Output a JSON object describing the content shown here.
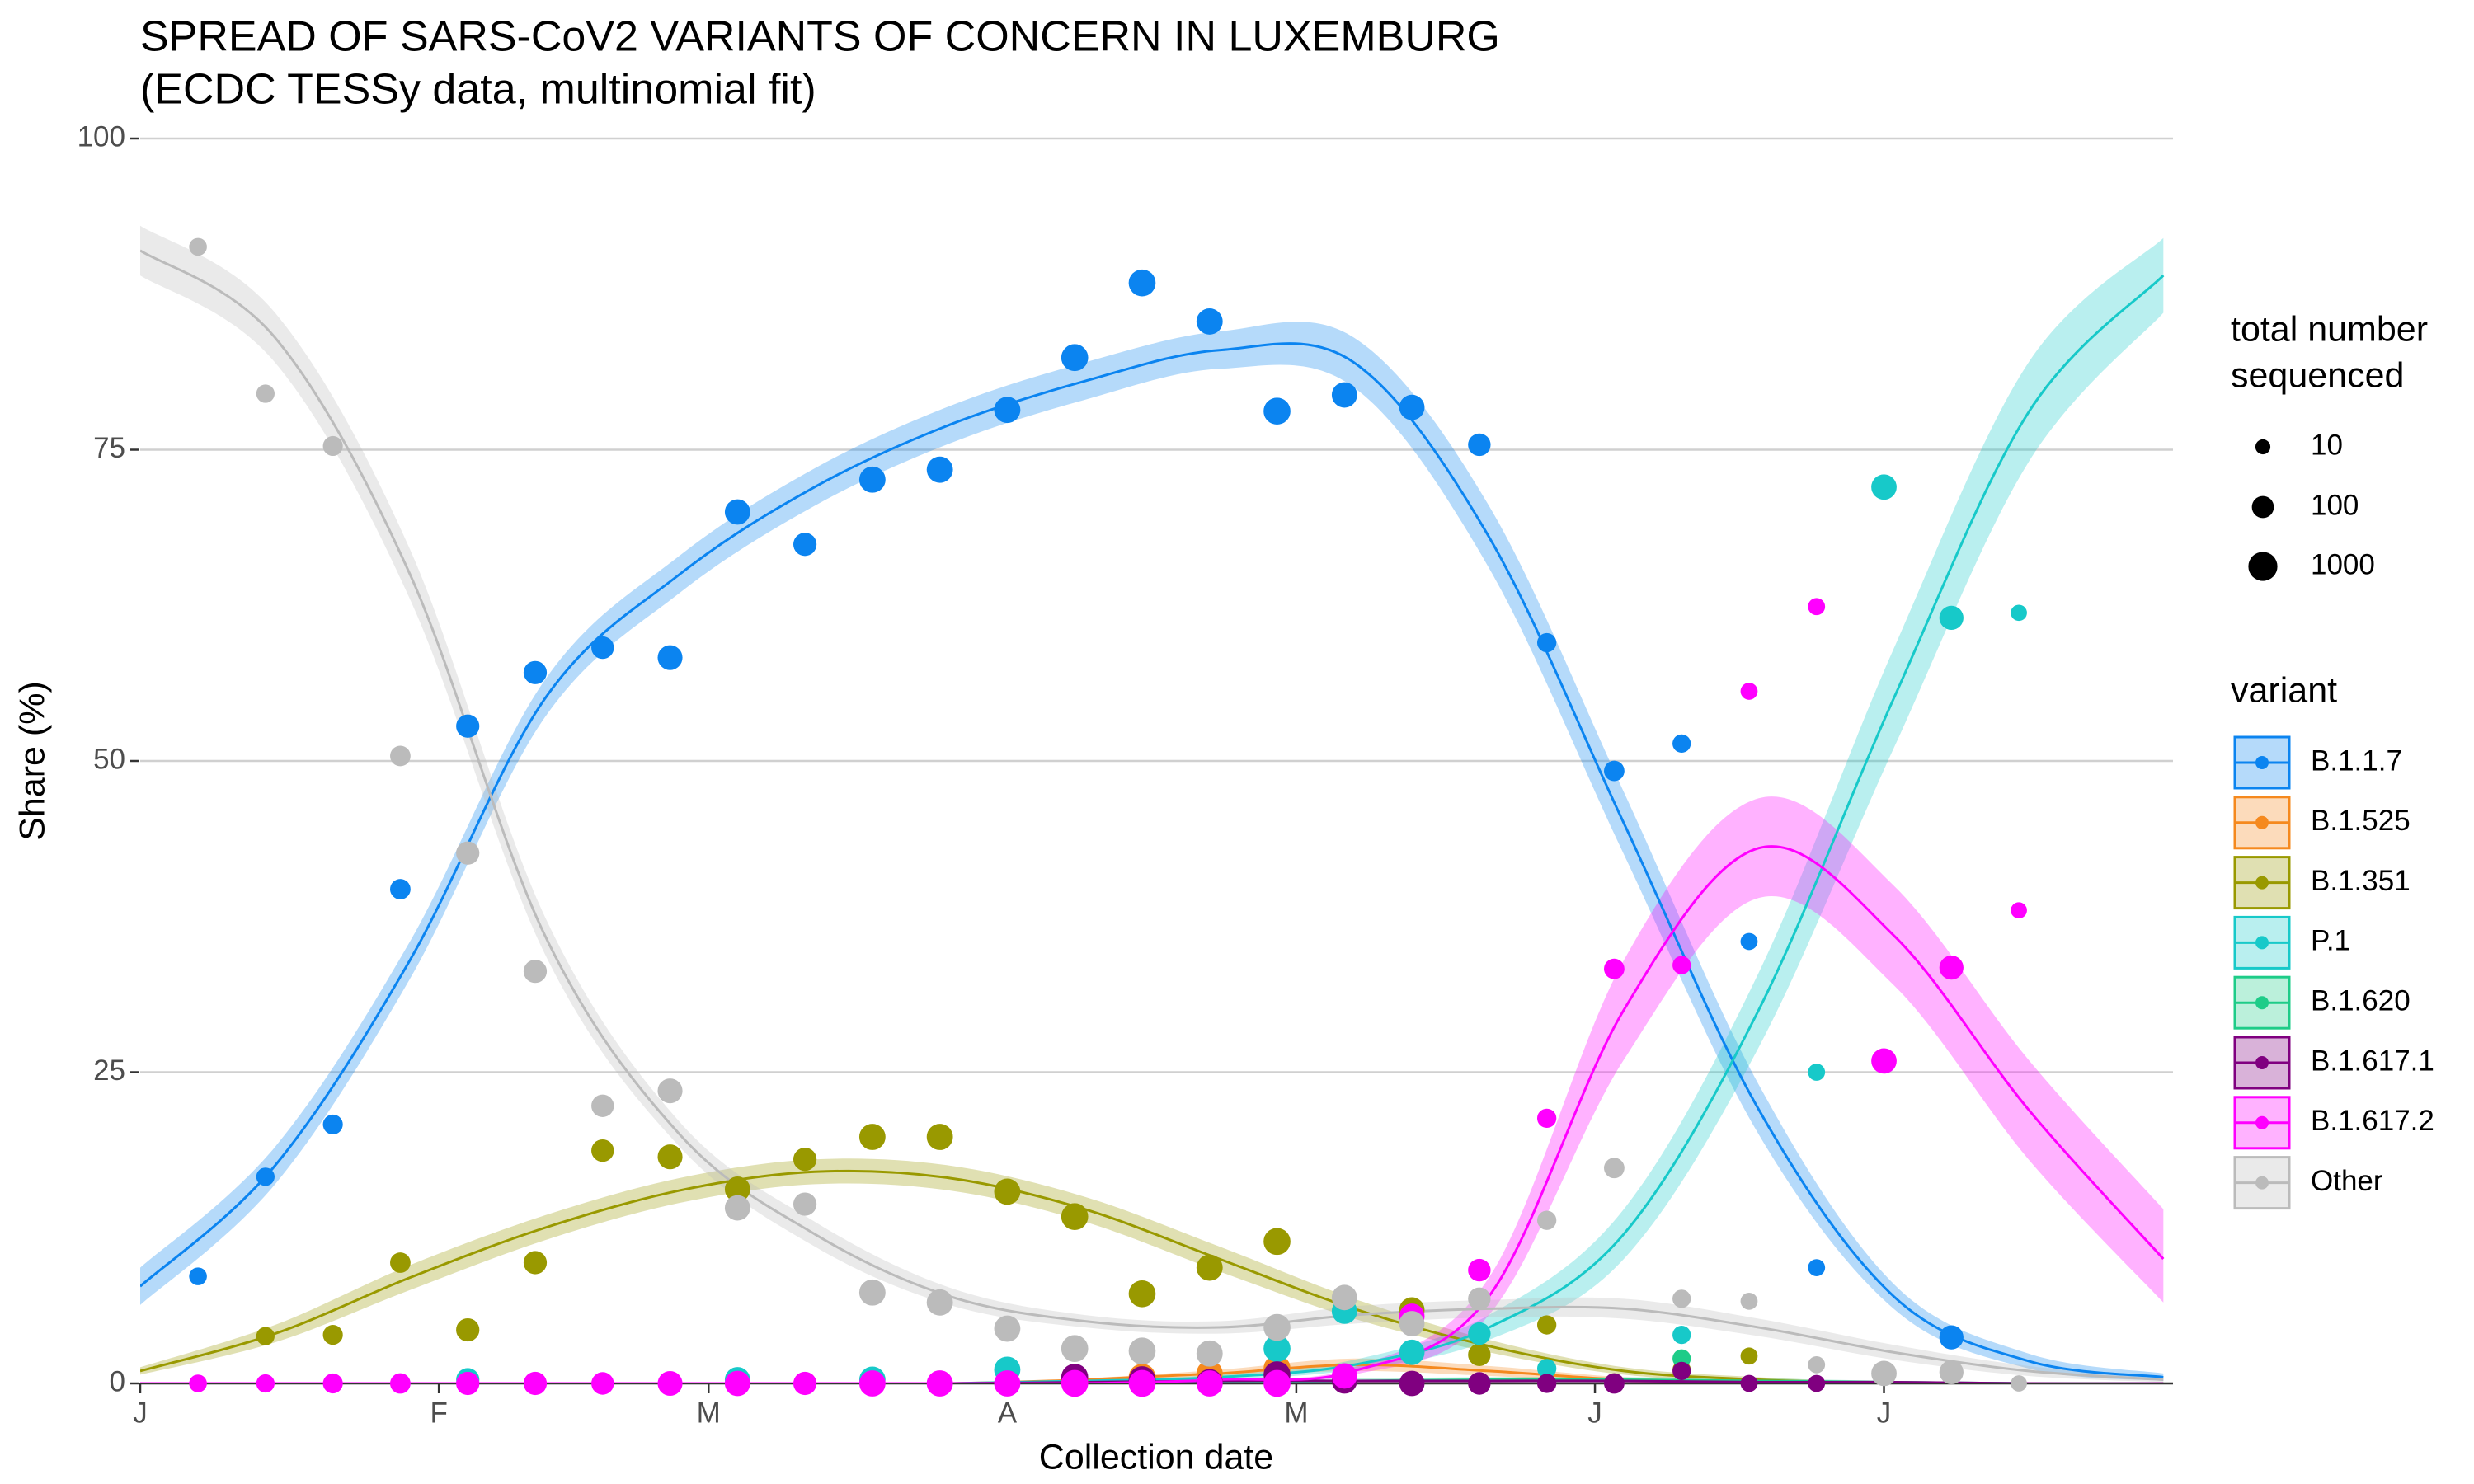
{
  "chart_data": {
    "type": "scatter",
    "title": "SPREAD OF SARS-CoV2 VARIANTS OF CONCERN IN LUXEMBURG",
    "subtitle": "(ECDC TESSy data, multinomial fit)",
    "x_label": "Collection date",
    "y_label": "Share (%)",
    "xlim": [
      0,
      211
    ],
    "xticks": [
      {
        "value": 0,
        "label": "J"
      },
      {
        "value": 31,
        "label": "F"
      },
      {
        "value": 59,
        "label": "M"
      },
      {
        "value": 90,
        "label": "A"
      },
      {
        "value": 120,
        "label": "M"
      },
      {
        "value": 151,
        "label": "J"
      },
      {
        "value": 181,
        "label": "J"
      }
    ],
    "ylim": [
      0,
      100
    ],
    "yticks": [
      0,
      25,
      50,
      75,
      100
    ],
    "grid": true,
    "size_legend_title": [
      "total number",
      "sequenced"
    ],
    "size_legend": [
      10,
      100,
      1000
    ],
    "color_legend_title": "variant",
    "x": [
      6,
      13,
      20,
      27,
      34,
      41,
      48,
      55,
      62,
      69,
      76,
      83,
      90,
      97,
      104,
      111,
      118,
      125,
      132,
      139,
      146,
      153,
      160,
      167,
      174,
      181,
      188,
      195
    ],
    "sizes": [
      25,
      30,
      50,
      60,
      150,
      150,
      120,
      250,
      300,
      150,
      400,
      400,
      400,
      500,
      500,
      400,
      500,
      300,
      300,
      120,
      40,
      60,
      30,
      20,
      20,
      300,
      200,
      15
    ],
    "fit_x": [
      0,
      14,
      28,
      42,
      56,
      70,
      84,
      98,
      112,
      126,
      140,
      154,
      168,
      182,
      196,
      210
    ],
    "series": [
      {
        "name": "B.1.1.7",
        "color": "#0b84f0",
        "values": [
          8.6,
          16.6,
          20.8,
          39.7,
          52.8,
          57.1,
          59.1,
          58.3,
          70.0,
          67.4,
          72.6,
          73.4,
          78.2,
          82.4,
          88.4,
          85.3,
          78.1,
          79.4,
          78.4,
          75.4,
          59.5,
          49.2,
          51.4,
          35.5,
          9.3,
          null,
          3.7,
          null
        ],
        "fit": [
          7.8,
          17.5,
          34,
          55,
          65,
          72,
          77,
          80.5,
          83,
          82,
          68,
          45,
          22,
          7,
          1.8,
          0.5
        ],
        "fit_lower": [
          6.3,
          16,
          32.5,
          53.5,
          63.5,
          70.5,
          75.5,
          79,
          81.5,
          80,
          65.5,
          42.5,
          20,
          6,
          1.2,
          0.2
        ],
        "fit_upper": [
          9.3,
          19,
          35.5,
          56.5,
          66.5,
          73.5,
          78.5,
          82,
          84.5,
          84,
          70.5,
          47.5,
          24,
          8,
          2.4,
          0.8
        ]
      },
      {
        "name": "B.1.525",
        "color": "#f5891e",
        "values": [
          null,
          null,
          null,
          null,
          null,
          null,
          null,
          null,
          null,
          null,
          null,
          null,
          null,
          0.3,
          0.5,
          0.8,
          1.2,
          null,
          null,
          null,
          null,
          null,
          null,
          null,
          null,
          null,
          null,
          null
        ],
        "fit": [
          0,
          0,
          0,
          0,
          0,
          0,
          0,
          0.3,
          0.8,
          1.5,
          1,
          0.3,
          0.1,
          0,
          0,
          0
        ],
        "fit_lower": [
          0,
          0,
          0,
          0,
          0,
          0,
          0,
          0.2,
          0.5,
          1,
          0.6,
          0.1,
          0,
          0,
          0,
          0
        ],
        "fit_upper": [
          0,
          0,
          0,
          0,
          0,
          0,
          0,
          0.4,
          1.1,
          2,
          1.4,
          0.5,
          0.2,
          0,
          0,
          0
        ]
      },
      {
        "name": "B.1.351",
        "color": "#999900",
        "values": [
          null,
          3.8,
          3.9,
          9.7,
          4.3,
          9.7,
          18.7,
          18.2,
          15.6,
          18.0,
          19.8,
          19.8,
          15.4,
          13.4,
          7.2,
          9.3,
          11.4,
          null,
          5.9,
          2.3,
          4.7,
          null,
          1.1,
          2.2,
          null,
          null,
          null,
          null
        ],
        "fit": [
          1,
          4,
          8.5,
          12.5,
          15.5,
          17,
          16.5,
          14,
          10,
          6,
          3,
          1,
          0.3,
          0,
          0,
          0
        ],
        "fit_lower": [
          0.7,
          3.3,
          7.5,
          11.5,
          14.5,
          16,
          15.5,
          13,
          9,
          5.2,
          2.5,
          0.7,
          0.1,
          0,
          0,
          0
        ],
        "fit_upper": [
          1.3,
          4.7,
          9.5,
          13.5,
          16.5,
          18,
          17.5,
          15,
          11,
          6.8,
          3.5,
          1.3,
          0.5,
          0.1,
          0,
          0
        ]
      },
      {
        "name": "P.1",
        "color": "#17c9c9",
        "values": [
          null,
          null,
          null,
          null,
          0.3,
          null,
          null,
          null,
          0.3,
          null,
          0.3,
          null,
          1.1,
          null,
          null,
          null,
          2.8,
          5.8,
          2.5,
          4.0,
          1.2,
          null,
          3.9,
          null,
          25.0,
          72.0,
          61.5,
          61.9
        ],
        "fit": [
          0,
          0,
          0,
          0,
          0,
          0,
          0,
          0.2,
          0.5,
          1.5,
          4.5,
          12,
          30,
          55,
          78,
          89
        ],
        "fit_lower": [
          0,
          0,
          0,
          0,
          0,
          0,
          0,
          0.1,
          0.3,
          1.1,
          3.5,
          10,
          27,
          51,
          74,
          86
        ],
        "fit_upper": [
          0,
          0,
          0,
          0,
          0,
          0,
          0,
          0.3,
          0.7,
          1.9,
          5.5,
          14,
          33,
          59,
          82,
          92
        ]
      },
      {
        "name": "B.1.620",
        "color": "#1ecc88",
        "values": [
          null,
          null,
          null,
          null,
          null,
          null,
          null,
          null,
          null,
          null,
          null,
          null,
          null,
          null,
          null,
          null,
          null,
          null,
          null,
          null,
          null,
          null,
          2.0,
          null,
          null,
          null,
          null,
          null
        ],
        "fit": [
          0,
          0,
          0,
          0,
          0,
          0,
          0,
          0,
          0.1,
          0.2,
          0.3,
          0.3,
          0.2,
          0.1,
          0,
          0
        ],
        "fit_lower": [
          0,
          0,
          0,
          0,
          0,
          0,
          0,
          0,
          0,
          0.1,
          0.1,
          0.1,
          0.1,
          0,
          0,
          0
        ],
        "fit_upper": [
          0,
          0,
          0,
          0,
          0,
          0,
          0,
          0,
          0.2,
          0.4,
          0.5,
          0.5,
          0.4,
          0.2,
          0.1,
          0
        ]
      },
      {
        "name": "B.1.617.1",
        "color": "#800080",
        "values": [
          null,
          null,
          null,
          null,
          null,
          null,
          null,
          null,
          null,
          null,
          null,
          null,
          null,
          0.5,
          0.3,
          0.1,
          0.7,
          0.2,
          0,
          0,
          0,
          0,
          1.0,
          0,
          0,
          null,
          null,
          null
        ],
        "fit": [
          0,
          0,
          0,
          0,
          0,
          0,
          0,
          0.1,
          0.2,
          0.2,
          0.2,
          0.2,
          0.1,
          0.1,
          0,
          0
        ],
        "fit_lower": [
          0,
          0,
          0,
          0,
          0,
          0,
          0,
          0,
          0.1,
          0.1,
          0.1,
          0.1,
          0,
          0,
          0,
          0
        ],
        "fit_upper": [
          0,
          0,
          0,
          0,
          0,
          0,
          0,
          0.2,
          0.3,
          0.3,
          0.3,
          0.3,
          0.2,
          0.2,
          0.1,
          0.1
        ]
      },
      {
        "name": "B.1.617.2",
        "color": "#ff00ff",
        "values": [
          0,
          0,
          0,
          0,
          0,
          0,
          0,
          0,
          0,
          0,
          0,
          0,
          0,
          0,
          0,
          0,
          0,
          0.6,
          5.4,
          9.1,
          21.3,
          33.3,
          33.6,
          55.6,
          62.4,
          25.9,
          33.4,
          38.0
        ],
        "fit": [
          0,
          0,
          0,
          0,
          0,
          0,
          0,
          0,
          0.3,
          1,
          7,
          30,
          43,
          36,
          22,
          10
        ],
        "fit_lower": [
          0,
          0,
          0,
          0,
          0,
          0,
          0,
          0,
          0.2,
          0.7,
          5.5,
          26,
          39,
          32,
          18,
          6.5
        ],
        "fit_upper": [
          0,
          0,
          0,
          0,
          0,
          0,
          0,
          0,
          0.4,
          1.3,
          8.5,
          34,
          47,
          40,
          26,
          14
        ]
      },
      {
        "name": "Other",
        "color": "#bbbbbb",
        "values": [
          91.3,
          79.5,
          75.3,
          50.4,
          42.6,
          33.1,
          22.3,
          23.5,
          14.1,
          14.4,
          7.3,
          6.5,
          4.4,
          2.8,
          2.6,
          2.4,
          4.5,
          6.9,
          4.8,
          6.8,
          13.1,
          17.3,
          6.8,
          6.6,
          1.5,
          0.8,
          0.9,
          0
        ],
        "fit": [
          91,
          84,
          65,
          36,
          20,
          12,
          7,
          5,
          4.5,
          5.5,
          6,
          6,
          4.5,
          2.5,
          1,
          0.3
        ],
        "fit_lower": [
          89,
          82,
          63,
          34.5,
          19,
          11,
          6.3,
          4.5,
          4,
          4.8,
          5.3,
          5.2,
          3.8,
          1.9,
          0.6,
          0.1
        ],
        "fit_upper": [
          93,
          86,
          67,
          37.5,
          21,
          13,
          7.7,
          5.5,
          5,
          6.2,
          6.7,
          6.8,
          5.2,
          3.1,
          1.4,
          0.5
        ]
      }
    ]
  }
}
